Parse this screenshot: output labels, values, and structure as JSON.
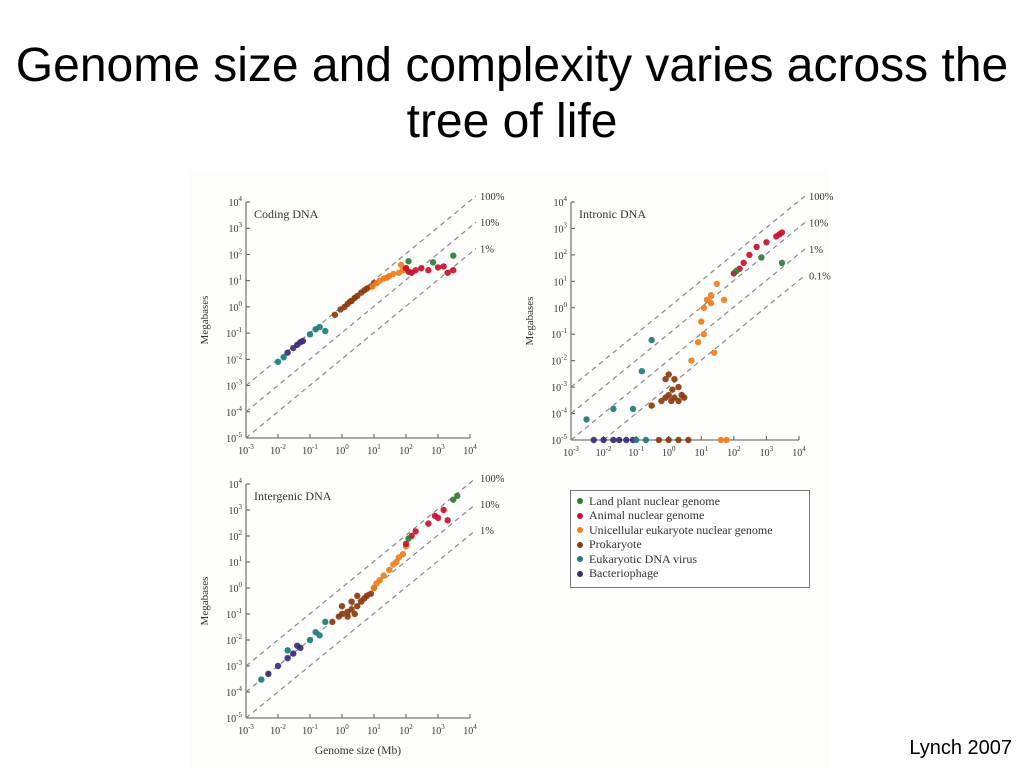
{
  "slide": {
    "title": "Genome size and complexity varies across the tree of life",
    "credit": "Lynch 2007"
  },
  "legend": {
    "items": [
      {
        "label": "Land plant nuclear genome",
        "color": "#2e7d32"
      },
      {
        "label": "Animal nuclear genome",
        "color": "#c8102e"
      },
      {
        "label": "Unicellular eukaryote nuclear genome",
        "color": "#ef7d1a"
      },
      {
        "label": "Prokaryote",
        "color": "#8b3a0e"
      },
      {
        "label": "Eukaryotic DNA virus",
        "color": "#1f7a7a"
      },
      {
        "label": "Bacteriophage",
        "color": "#3b2a7a"
      }
    ]
  },
  "chart_data": [
    {
      "type": "scatter",
      "title": "Coding DNA",
      "xlabel": "",
      "ylabel": "Megabases",
      "xscale": "log",
      "yscale": "log",
      "xlim": [
        0.001,
        10000
      ],
      "ylim": [
        1e-05,
        10000
      ],
      "x_ticks": [
        "10^-3",
        "10^-2",
        "10^-1",
        "10^0",
        "10^1",
        "10^2",
        "10^3",
        "10^4"
      ],
      "y_ticks": [
        "10^-5",
        "10^-4",
        "10^-3",
        "10^-2",
        "10^-1",
        "10^0",
        "10^1",
        "10^2",
        "10^3",
        "10^4"
      ],
      "reference_lines": [
        {
          "label": "100%",
          "fraction": 1
        },
        {
          "label": "10%",
          "fraction": 0.1
        },
        {
          "label": "1%",
          "fraction": 0.01
        }
      ],
      "series": [
        {
          "name": "Bacteriophage",
          "color": "#3b2a7a",
          "points": [
            [
              0.02,
              0.018
            ],
            [
              0.03,
              0.027
            ],
            [
              0.05,
              0.045
            ],
            [
              0.06,
              0.05
            ],
            [
              0.04,
              0.036
            ]
          ]
        },
        {
          "name": "Eukaryotic DNA virus",
          "color": "#1f7a7a",
          "points": [
            [
              0.01,
              0.008
            ],
            [
              0.015,
              0.012
            ],
            [
              0.1,
              0.09
            ],
            [
              0.2,
              0.17
            ],
            [
              0.15,
              0.14
            ],
            [
              0.3,
              0.12
            ]
          ]
        },
        {
          "name": "Prokaryote",
          "color": "#8b3a0e",
          "points": [
            [
              0.6,
              0.5
            ],
            [
              0.9,
              0.8
            ],
            [
              1.2,
              1.0
            ],
            [
              1.8,
              1.6
            ],
            [
              2.5,
              2.2
            ],
            [
              3,
              2.6
            ],
            [
              4,
              3.5
            ],
            [
              5,
              4.3
            ],
            [
              6,
              5
            ],
            [
              8,
              6
            ],
            [
              10,
              8
            ],
            [
              1.5,
              1.3
            ],
            [
              2,
              1.7
            ]
          ]
        },
        {
          "name": "Unicellular eukaryote nuclear genome",
          "color": "#ef7d1a",
          "points": [
            [
              9,
              6
            ],
            [
              12,
              8
            ],
            [
              15,
              10
            ],
            [
              20,
              12
            ],
            [
              25,
              13
            ],
            [
              30,
              15
            ],
            [
              40,
              18
            ],
            [
              60,
              20
            ],
            [
              80,
              25
            ],
            [
              100,
              30
            ],
            [
              70,
              40
            ]
          ]
        },
        {
          "name": "Animal nuclear genome",
          "color": "#c8102e",
          "points": [
            [
              100,
              30
            ],
            [
              120,
              22
            ],
            [
              150,
              20
            ],
            [
              200,
              25
            ],
            [
              300,
              30
            ],
            [
              500,
              25
            ],
            [
              1000,
              32
            ],
            [
              2000,
              20
            ],
            [
              3000,
              25
            ],
            [
              1500,
              35
            ]
          ]
        },
        {
          "name": "Land plant nuclear genome",
          "color": "#2e7d32",
          "points": [
            [
              120,
              55
            ],
            [
              700,
              50
            ],
            [
              3000,
              90
            ]
          ]
        }
      ]
    },
    {
      "type": "scatter",
      "title": "Intronic DNA",
      "xlabel": "",
      "ylabel": "Megabases",
      "xscale": "log",
      "yscale": "log",
      "xlim": [
        0.001,
        10000
      ],
      "ylim": [
        1e-05,
        10000
      ],
      "x_ticks": [
        "10^-3",
        "10^-2",
        "10^-1",
        "10^0",
        "10^1",
        "10^2",
        "10^3",
        "10^4"
      ],
      "y_ticks": [
        "10^-5",
        "10^-4",
        "10^-3",
        "10^-2",
        "10^-1",
        "10^0",
        "10^1",
        "10^2",
        "10^3",
        "10^4"
      ],
      "reference_lines": [
        {
          "label": "100%",
          "fraction": 1
        },
        {
          "label": "10%",
          "fraction": 0.1
        },
        {
          "label": "1%",
          "fraction": 0.01
        },
        {
          "label": "0.1%",
          "fraction": 0.001
        }
      ],
      "series": [
        {
          "name": "Bacteriophage",
          "color": "#3b2a7a",
          "points": [
            [
              0.005,
              1e-05
            ],
            [
              0.01,
              1e-05
            ],
            [
              0.02,
              1e-05
            ],
            [
              0.03,
              1e-05
            ],
            [
              0.05,
              1e-05
            ],
            [
              0.08,
              1e-05
            ]
          ]
        },
        {
          "name": "Eukaryotic DNA virus",
          "color": "#1f7a7a",
          "points": [
            [
              0.003,
              6e-05
            ],
            [
              0.02,
              0.00015
            ],
            [
              0.08,
              0.00015
            ],
            [
              0.15,
              0.004
            ],
            [
              0.3,
              0.06
            ],
            [
              0.1,
              1e-05
            ],
            [
              0.2,
              1e-05
            ]
          ]
        },
        {
          "name": "Prokaryote",
          "color": "#8b3a0e",
          "points": [
            [
              0.5,
              1e-05
            ],
            [
              1,
              1e-05
            ],
            [
              2,
              1e-05
            ],
            [
              4,
              1e-05
            ],
            [
              0.3,
              0.0002
            ],
            [
              0.6,
              0.0003
            ],
            [
              0.8,
              0.0004
            ],
            [
              1,
              0.0005
            ],
            [
              1.2,
              0.0003
            ],
            [
              1.5,
              0.0004
            ],
            [
              2,
              0.0003
            ],
            [
              2.5,
              0.0005
            ],
            [
              3,
              0.0004
            ],
            [
              1,
              0.003
            ],
            [
              1.5,
              0.002
            ],
            [
              2,
              0.001
            ],
            [
              0.8,
              0.002
            ],
            [
              1.3,
              0.0008
            ]
          ]
        },
        {
          "name": "Unicellular eukaryote nuclear genome",
          "color": "#ef7d1a",
          "points": [
            [
              5,
              0.01
            ],
            [
              8,
              0.05
            ],
            [
              10,
              0.3
            ],
            [
              12,
              1
            ],
            [
              15,
              2
            ],
            [
              20,
              3
            ],
            [
              20,
              1.5
            ],
            [
              30,
              8
            ],
            [
              50,
              2
            ],
            [
              12,
              0.1
            ],
            [
              25,
              0.02
            ],
            [
              40,
              1e-05
            ],
            [
              60,
              1e-05
            ]
          ]
        },
        {
          "name": "Animal nuclear genome",
          "color": "#c8102e",
          "points": [
            [
              100,
              20
            ],
            [
              150,
              30
            ],
            [
              200,
              50
            ],
            [
              300,
              100
            ],
            [
              500,
              200
            ],
            [
              1000,
              300
            ],
            [
              2000,
              500
            ],
            [
              3000,
              700
            ],
            [
              2500,
              600
            ]
          ]
        },
        {
          "name": "Land plant nuclear genome",
          "color": "#2e7d32",
          "points": [
            [
              120,
              25
            ],
            [
              700,
              80
            ],
            [
              3000,
              50
            ]
          ]
        }
      ]
    },
    {
      "type": "scatter",
      "title": "Intergenic DNA",
      "xlabel": "Genome size (Mb)",
      "ylabel": "Megabases",
      "xscale": "log",
      "yscale": "log",
      "xlim": [
        0.001,
        10000
      ],
      "ylim": [
        1e-05,
        10000
      ],
      "x_ticks": [
        "10^-3",
        "10^-2",
        "10^-1",
        "10^0",
        "10^1",
        "10^2",
        "10^3",
        "10^4"
      ],
      "y_ticks": [
        "10^-5",
        "10^-4",
        "10^-3",
        "10^-2",
        "10^-1",
        "10^0",
        "10^1",
        "10^2",
        "10^3",
        "10^4"
      ],
      "reference_lines": [
        {
          "label": "100%",
          "fraction": 1
        },
        {
          "label": "10%",
          "fraction": 0.1
        },
        {
          "label": "1%",
          "fraction": 0.01
        }
      ],
      "series": [
        {
          "name": "Bacteriophage",
          "color": "#3b2a7a",
          "points": [
            [
              0.005,
              0.0005
            ],
            [
              0.01,
              0.001
            ],
            [
              0.02,
              0.002
            ],
            [
              0.03,
              0.003
            ],
            [
              0.05,
              0.005
            ],
            [
              0.04,
              0.006
            ]
          ]
        },
        {
          "name": "Eukaryotic DNA virus",
          "color": "#1f7a7a",
          "points": [
            [
              0.003,
              0.0003
            ],
            [
              0.02,
              0.004
            ],
            [
              0.1,
              0.01
            ],
            [
              0.15,
              0.02
            ],
            [
              0.2,
              0.015
            ],
            [
              0.3,
              0.05
            ]
          ]
        },
        {
          "name": "Prokaryote",
          "color": "#8b3a0e",
          "points": [
            [
              0.5,
              0.05
            ],
            [
              0.8,
              0.08
            ],
            [
              1,
              0.1
            ],
            [
              1.5,
              0.12
            ],
            [
              2,
              0.15
            ],
            [
              3,
              0.2
            ],
            [
              4,
              0.3
            ],
            [
              5,
              0.4
            ],
            [
              6,
              0.5
            ],
            [
              8,
              0.6
            ],
            [
              10,
              1
            ],
            [
              1,
              0.2
            ],
            [
              2,
              0.3
            ],
            [
              3,
              0.5
            ],
            [
              1.5,
              0.08
            ],
            [
              2.5,
              0.1
            ]
          ]
        },
        {
          "name": "Unicellular eukaryote nuclear genome",
          "color": "#ef7d1a",
          "points": [
            [
              10,
              1
            ],
            [
              15,
              2
            ],
            [
              20,
              3
            ],
            [
              30,
              5
            ],
            [
              40,
              8
            ],
            [
              50,
              10
            ],
            [
              60,
              15
            ],
            [
              80,
              20
            ],
            [
              100,
              40
            ],
            [
              12,
              1.5
            ]
          ]
        },
        {
          "name": "Animal nuclear genome",
          "color": "#c8102e",
          "points": [
            [
              100,
              50
            ],
            [
              150,
              100
            ],
            [
              200,
              150
            ],
            [
              500,
              300
            ],
            [
              1000,
              500
            ],
            [
              2000,
              400
            ],
            [
              1500,
              1000
            ],
            [
              800,
              600
            ]
          ]
        },
        {
          "name": "Land plant nuclear genome",
          "color": "#2e7d32",
          "points": [
            [
              120,
              80
            ],
            [
              3000,
              2500
            ],
            [
              4000,
              3500
            ]
          ]
        }
      ]
    }
  ]
}
